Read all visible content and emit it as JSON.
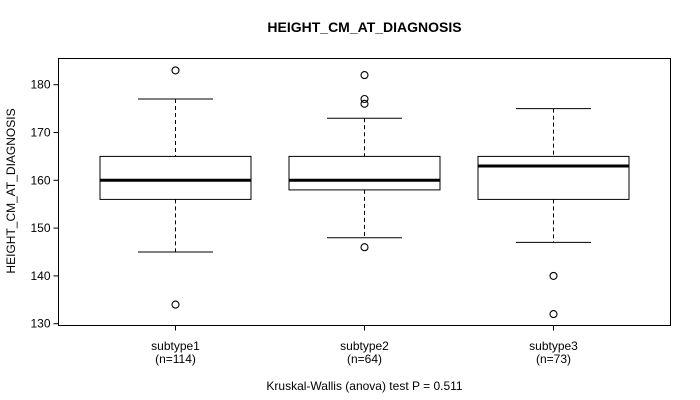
{
  "chart_data": {
    "type": "boxplot",
    "title": "HEIGHT_CM_AT_DIAGNOSIS",
    "xlabel": "",
    "ylabel": "HEIGHT_CM_AT_DIAGNOSIS",
    "footer": "Kruskal-Wallis (anova) test P = 0.511",
    "ylim": [
      130,
      186
    ],
    "yticks": [
      130,
      140,
      150,
      160,
      170,
      180
    ],
    "grid": false,
    "legend": "none",
    "categories": [
      {
        "label": "subtype1",
        "sublabel": "(n=114)"
      },
      {
        "label": "subtype2",
        "sublabel": "(n=64)"
      },
      {
        "label": "subtype3",
        "sublabel": "(n=73)"
      }
    ],
    "series": [
      {
        "name": "subtype1",
        "whisker_low": 145,
        "q1": 156,
        "median": 160,
        "q3": 165,
        "whisker_high": 177,
        "outliers": [
          134,
          183
        ]
      },
      {
        "name": "subtype2",
        "whisker_low": 148,
        "q1": 158,
        "median": 160,
        "q3": 165,
        "whisker_high": 173,
        "outliers": [
          146,
          176,
          177,
          182
        ]
      },
      {
        "name": "subtype3",
        "whisker_low": 147,
        "q1": 156,
        "median": 163,
        "q3": 165,
        "whisker_high": 175,
        "outliers": [
          132,
          140
        ]
      }
    ],
    "colors": {
      "stroke": "#000000",
      "box_fill": "#ffffff",
      "background": "#ffffff",
      "text": "#000000"
    }
  }
}
